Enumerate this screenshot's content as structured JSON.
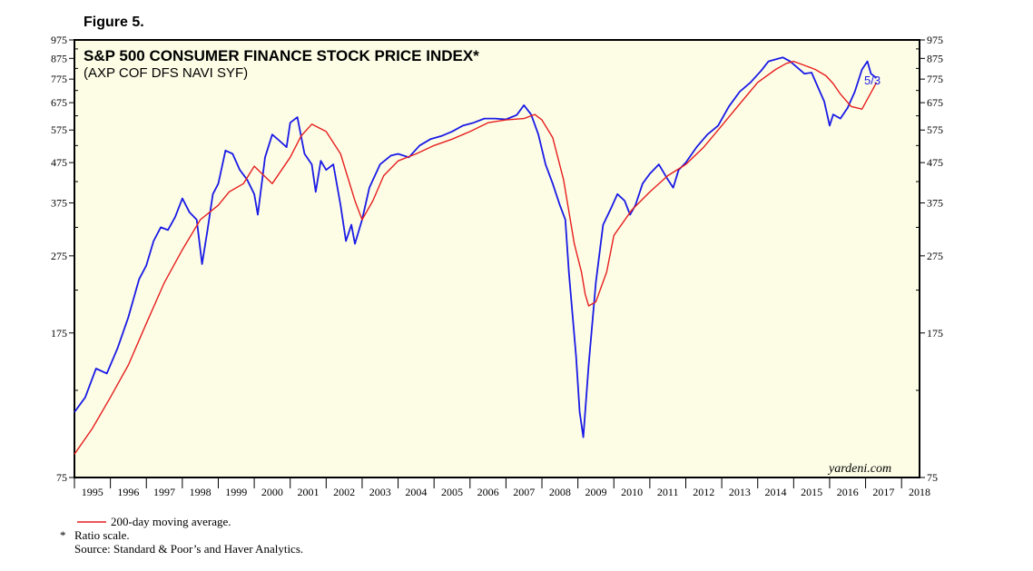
{
  "figure_label": "Figure 5.",
  "brand": "yardeni.com",
  "footnotes": {
    "legend_ma": "200-day moving average.",
    "star": "*",
    "ratio_scale": "Ratio scale.",
    "source": "Source: Standard & Poor’s and Haver Analytics."
  },
  "colors": {
    "plot_background": "#fdfde6",
    "price_series": "#1a1ae6",
    "moving_average": "#e61e1e",
    "frame": "#000000"
  },
  "chart_data": {
    "type": "line",
    "title": "S&P 500 CONSUMER FINANCE STOCK PRICE INDEX*",
    "subtitle": "(AXP COF DFS NAVI SYF)",
    "scale": "log",
    "ylim": [
      75,
      975
    ],
    "xlim": [
      1995.0,
      2018.5
    ],
    "yticks_left": [
      "975",
      "875",
      "775",
      "675",
      "575",
      "475",
      "375",
      "275",
      "175",
      "75"
    ],
    "yticks_right": [
      "975",
      "875",
      "775",
      "675",
      "575",
      "475",
      "375",
      "275",
      "175",
      "75"
    ],
    "ytick_values": [
      975,
      875,
      775,
      675,
      575,
      475,
      375,
      275,
      175,
      75
    ],
    "xticks": [
      "1995",
      "1996",
      "1997",
      "1998",
      "1999",
      "2000",
      "2001",
      "2002",
      "2003",
      "2004",
      "2005",
      "2006",
      "2007",
      "2008",
      "2009",
      "2010",
      "2011",
      "2012",
      "2013",
      "2014",
      "2015",
      "2016",
      "2017",
      "2018"
    ],
    "end_label": "5/3",
    "legend": [
      {
        "name": "200-day moving average.",
        "color": "#e61e1e"
      }
    ],
    "series": [
      {
        "name": "price",
        "color": "#1a1ae6",
        "x": [
          1995.0,
          1995.3,
          1995.6,
          1995.9,
          1996.2,
          1996.5,
          1996.8,
          1997.0,
          1997.2,
          1997.4,
          1997.6,
          1997.8,
          1998.0,
          1998.2,
          1998.4,
          1998.55,
          1998.7,
          1998.85,
          1999.0,
          1999.2,
          1999.4,
          1999.6,
          1999.8,
          2000.0,
          2000.1,
          2000.3,
          2000.5,
          2000.7,
          2000.9,
          2001.0,
          2001.2,
          2001.4,
          2001.6,
          2001.71,
          2001.85,
          2002.0,
          2002.2,
          2002.4,
          2002.55,
          2002.7,
          2002.8,
          2003.0,
          2003.2,
          2003.5,
          2003.8,
          2004.0,
          2004.3,
          2004.6,
          2004.9,
          2005.2,
          2005.5,
          2005.8,
          2006.1,
          2006.4,
          2006.7,
          2007.0,
          2007.3,
          2007.5,
          2007.7,
          2007.9,
          2008.1,
          2008.3,
          2008.5,
          2008.65,
          2008.75,
          2008.85,
          2008.95,
          2009.05,
          2009.15,
          2009.3,
          2009.5,
          2009.7,
          2009.9,
          2010.1,
          2010.3,
          2010.45,
          2010.6,
          2010.8,
          2011.0,
          2011.25,
          2011.5,
          2011.65,
          2011.8,
          2012.0,
          2012.3,
          2012.6,
          2012.9,
          2013.2,
          2013.5,
          2013.8,
          2014.1,
          2014.3,
          2014.5,
          2014.7,
          2014.9,
          2015.1,
          2015.3,
          2015.5,
          2015.7,
          2015.85,
          2016.0,
          2016.1,
          2016.3,
          2016.5,
          2016.7,
          2016.9,
          2017.05,
          2017.15,
          2017.3
        ],
        "y": [
          110,
          120,
          142,
          138,
          160,
          192,
          240,
          260,
          300,
          325,
          320,
          345,
          385,
          355,
          340,
          262,
          320,
          395,
          420,
          510,
          500,
          455,
          430,
          395,
          350,
          490,
          560,
          540,
          520,
          600,
          620,
          500,
          470,
          400,
          480,
          455,
          470,
          370,
          300,
          330,
          295,
          340,
          410,
          470,
          495,
          500,
          490,
          525,
          545,
          555,
          570,
          590,
          600,
          615,
          615,
          612,
          628,
          665,
          630,
          560,
          470,
          420,
          370,
          340,
          250,
          195,
          152,
          110,
          95,
          145,
          235,
          330,
          360,
          395,
          380,
          350,
          370,
          420,
          445,
          470,
          430,
          410,
          455,
          475,
          520,
          560,
          590,
          660,
          720,
          760,
          815,
          860,
          870,
          880,
          860,
          830,
          800,
          805,
          730,
          680,
          590,
          630,
          615,
          655,
          720,
          820,
          860,
          800,
          780
        ]
      },
      {
        "name": "200-day moving average",
        "color": "#e61e1e",
        "x": [
          1995.0,
          1995.5,
          1996.0,
          1996.5,
          1997.0,
          1997.5,
          1998.0,
          1998.5,
          1999.0,
          1999.3,
          1999.7,
          2000.0,
          2000.5,
          2001.0,
          2001.3,
          2001.6,
          2002.0,
          2002.4,
          2002.8,
          2003.0,
          2003.3,
          2003.6,
          2004.0,
          2004.5,
          2005.0,
          2005.5,
          2006.0,
          2006.5,
          2007.0,
          2007.5,
          2007.8,
          2008.0,
          2008.3,
          2008.6,
          2008.9,
          2009.1,
          2009.2,
          2009.3,
          2009.5,
          2009.8,
          2010.0,
          2010.5,
          2011.0,
          2011.5,
          2012.0,
          2012.5,
          2013.0,
          2013.5,
          2014.0,
          2014.5,
          2014.8,
          2015.0,
          2015.3,
          2015.6,
          2015.9,
          2016.1,
          2016.3,
          2016.6,
          2016.9,
          2017.2,
          2017.3
        ],
        "y": [
          86,
          100,
          120,
          145,
          185,
          235,
          285,
          340,
          370,
          400,
          420,
          465,
          420,
          490,
          555,
          595,
          570,
          500,
          380,
          340,
          380,
          440,
          480,
          500,
          525,
          545,
          570,
          600,
          610,
          615,
          630,
          610,
          550,
          430,
          295,
          250,
          220,
          205,
          210,
          250,
          310,
          360,
          400,
          440,
          470,
          520,
          590,
          670,
          760,
          820,
          850,
          860,
          840,
          820,
          790,
          755,
          710,
          660,
          650,
          730,
          760
        ]
      }
    ]
  }
}
